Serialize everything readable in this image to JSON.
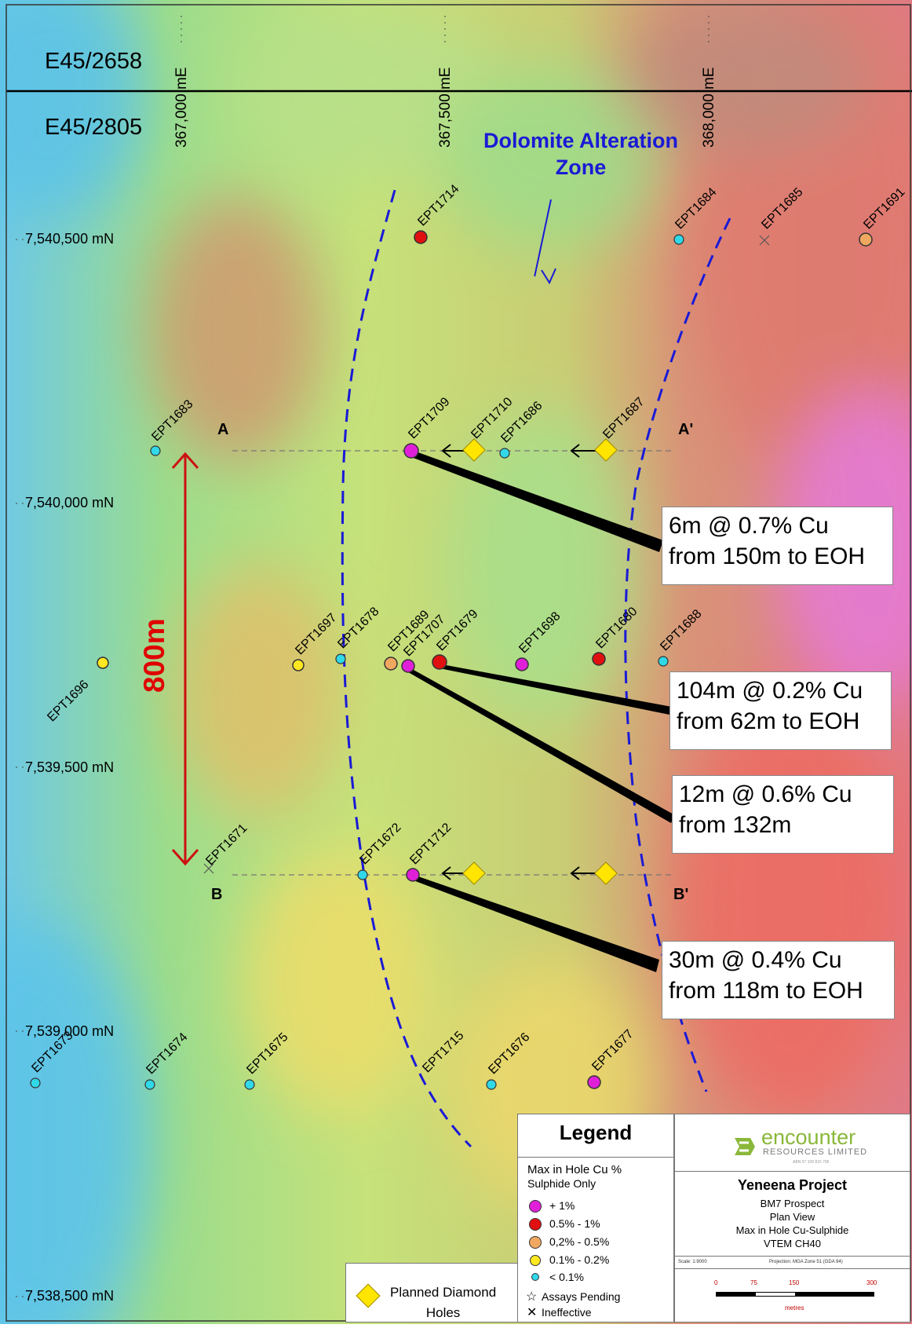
{
  "tenements": {
    "north": "E45/2658",
    "south": "E45/2805"
  },
  "eastings": [
    "367,000 mE",
    "367,500 mE",
    "368,000 mE"
  ],
  "northings": [
    "7,540,500 mN",
    "7,540,000 mN",
    "7,539,500 mN",
    "7,539,000 mN",
    "7,538,500 mN"
  ],
  "zone_label": [
    "Dolomite Alteration",
    "Zone"
  ],
  "section_labels": {
    "a": "A",
    "a_prime": "A'",
    "b": "B",
    "b_prime": "B'"
  },
  "distance_label": "800m",
  "holes": [
    {
      "id": "EPT1714",
      "grade": "0.5% - 1%",
      "color": "#e01010"
    },
    {
      "id": "EPT1684",
      "grade": "< 0.1%",
      "color": "#30d8e8"
    },
    {
      "id": "EPT1685",
      "grade": "Ineffective",
      "color": ""
    },
    {
      "id": "EPT1691",
      "grade": "0,2% - 0.5%",
      "color": "#f0a860"
    },
    {
      "id": "EPT1683",
      "grade": "< 0.1%",
      "color": "#30d8e8"
    },
    {
      "id": "EPT1709",
      "grade": "+ 1%",
      "color": "#e020d8"
    },
    {
      "id": "EPT1710",
      "grade": "Planned Diamond Holes",
      "color": "#ffe500"
    },
    {
      "id": "EPT1686",
      "grade": "< 0.1%",
      "color": "#30d8e8"
    },
    {
      "id": "EPT1687",
      "grade": "Planned Diamond Holes",
      "color": "#ffe500"
    },
    {
      "id": "EPT1696",
      "grade": "0.1% - 0.2%",
      "color": "#ffe820"
    },
    {
      "id": "EPT1697",
      "grade": "0.1% - 0.2%",
      "color": "#ffe820"
    },
    {
      "id": "EPT1678",
      "grade": "< 0.1%",
      "color": "#30d8e8"
    },
    {
      "id": "EPT1689",
      "grade": "0,2% - 0.5%",
      "color": "#f0a860"
    },
    {
      "id": "EPT1707",
      "grade": "+ 1%",
      "color": "#e020d8"
    },
    {
      "id": "EPT1679",
      "grade": "0.5% - 1%",
      "color": "#e01010"
    },
    {
      "id": "EPT1698",
      "grade": "+ 1%",
      "color": "#e020d8"
    },
    {
      "id": "EPT1680",
      "grade": "0.5% - 1%",
      "color": "#e01010"
    },
    {
      "id": "EPT1688",
      "grade": "< 0.1%",
      "color": "#30d8e8"
    },
    {
      "id": "EPT1671",
      "grade": "Ineffective",
      "color": ""
    },
    {
      "id": "EPT1672",
      "grade": "< 0.1%",
      "color": "#30d8e8"
    },
    {
      "id": "EPT1712",
      "grade": "+ 1%",
      "color": "#e020d8"
    },
    {
      "id": "EPT1673",
      "grade": "< 0.1%",
      "color": "#30d8e8"
    },
    {
      "id": "EPT1674",
      "grade": "< 0.1%",
      "color": "#30d8e8"
    },
    {
      "id": "EPT1675",
      "grade": "< 0.1%",
      "color": "#30d8e8"
    },
    {
      "id": "EPT1715",
      "grade": "",
      "color": ""
    },
    {
      "id": "EPT1676",
      "grade": "< 0.1%",
      "color": "#30d8e8"
    },
    {
      "id": "EPT1677",
      "grade": "+ 1%",
      "color": "#e020d8"
    }
  ],
  "intercepts": [
    {
      "line1": "6m @ 0.7% Cu",
      "line2": "from 150m to EOH"
    },
    {
      "line1": "104m @ 0.2% Cu",
      "line2": "from 62m to EOH"
    },
    {
      "line1": "12m @ 0.6% Cu",
      "line2": "from 132m"
    },
    {
      "line1": "30m @ 0.4% Cu",
      "line2": "from 118m to EOH"
    }
  ],
  "legend": {
    "title": "Legend",
    "heading": "Max in Hole Cu %",
    "subheading": "Sulphide Only",
    "items": [
      {
        "label": "+ 1%",
        "color": "#e020d8"
      },
      {
        "label": "0.5% - 1%",
        "color": "#e01010"
      },
      {
        "label": "0,2% - 0.5%",
        "color": "#f0a860"
      },
      {
        "label": "0.1% - 0.2%",
        "color": "#ffe820"
      },
      {
        "label": "< 0.1%",
        "color": "#30d8e8"
      }
    ],
    "assays_pending": "Assays Pending",
    "ineffective": "Ineffective",
    "planned": [
      "Planned Diamond",
      "Holes"
    ]
  },
  "titleblock": {
    "logo_name": "encounter",
    "logo_sub": "RESOURCES LIMITED",
    "abn": "ABN 97 109 815 796",
    "project": "Yeneena Project",
    "lines": [
      "BM7 Prospect",
      "Plan View",
      "Max in Hole Cu-Sulphide",
      "VTEM CH40"
    ],
    "scale": "Scale: 1:9000",
    "projection": "Projection: MGA Zone 51 (GDA 94)",
    "scale_ticks": [
      "0",
      "75",
      "150",
      "300"
    ],
    "scale_unit": "metres"
  }
}
